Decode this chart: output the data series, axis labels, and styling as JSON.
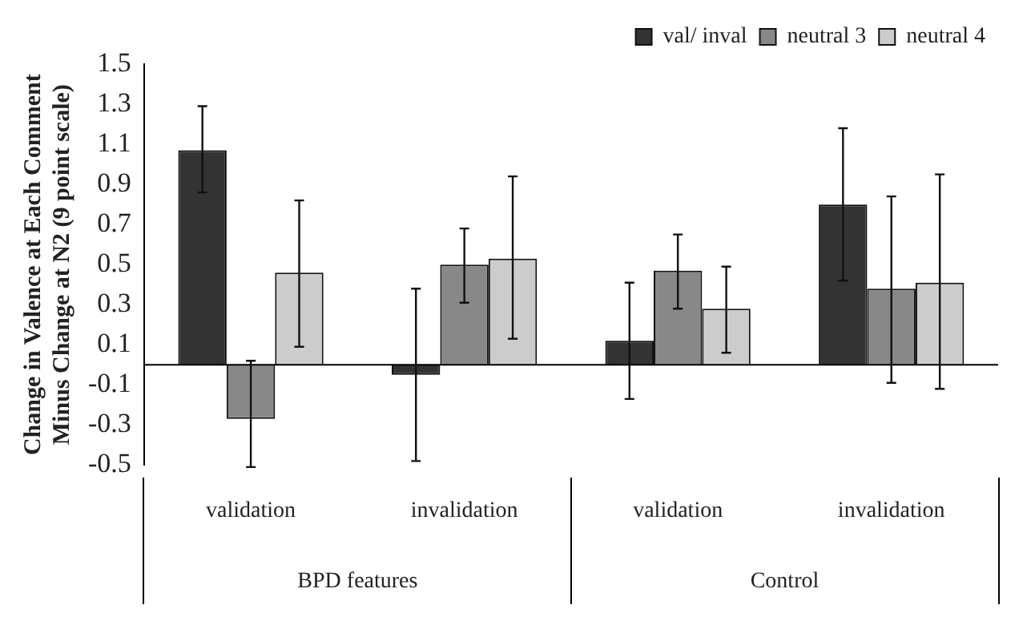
{
  "chart_data": {
    "type": "bar",
    "ylabel": "Change in Valence at Each Comment\nMinus Change at N2 (9 point scale)",
    "categories": [
      "validation",
      "invalidation",
      "validation",
      "invalidation"
    ],
    "annotations": [
      "BPD features",
      "Control"
    ],
    "series": [
      {
        "name": "val/ inval",
        "color": "#333333",
        "values": [
          1.07,
          -0.05,
          0.12,
          0.8
        ],
        "errors": [
          [
            0.86,
            1.29
          ],
          [
            -0.48,
            0.38
          ],
          [
            -0.17,
            0.41
          ],
          [
            0.42,
            1.18
          ]
        ]
      },
      {
        "name": "neutral 3",
        "color": "#888888",
        "values": [
          -0.27,
          0.5,
          0.47,
          0.38
        ],
        "errors": [
          [
            -0.51,
            0.02
          ],
          [
            0.31,
            0.68
          ],
          [
            0.28,
            0.65
          ],
          [
            -0.09,
            0.84
          ]
        ]
      },
      {
        "name": "neutral 4",
        "color": "#cccccc",
        "values": [
          0.46,
          0.53,
          0.28,
          0.41
        ],
        "errors": [
          [
            0.09,
            0.82
          ],
          [
            0.13,
            0.94
          ],
          [
            0.06,
            0.49
          ],
          [
            -0.12,
            0.95
          ]
        ]
      }
    ],
    "ylim": [
      -0.5,
      1.5
    ],
    "yticks": [
      -0.5,
      -0.3,
      -0.1,
      0.1,
      0.3,
      0.5,
      0.7,
      0.9,
      1.1,
      1.3,
      1.5
    ],
    "grid": false,
    "legend": "top right"
  }
}
